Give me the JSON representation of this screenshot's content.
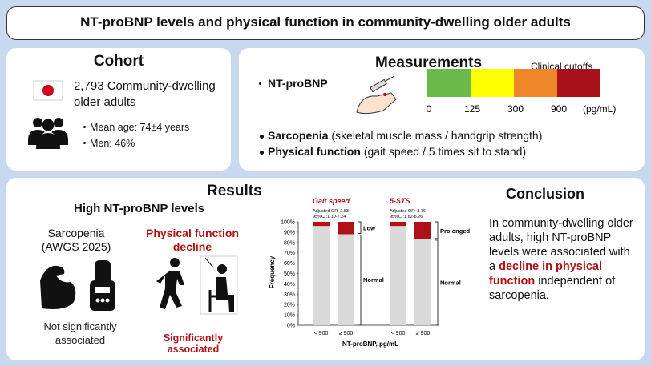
{
  "header": {
    "title": "NT-proBNP levels and physical function in community-dwelling older adults"
  },
  "cohort": {
    "title": "Cohort",
    "population": "2,793 Community-dwelling older adults",
    "details": [
      "Mean age: 74±4 years",
      "Men: 46%"
    ]
  },
  "measurements": {
    "title": "Measurements",
    "cutoff_title": "Clinical cutoffs",
    "cutoff_labels": [
      "0",
      "125",
      "300",
      "900"
    ],
    "cutoff_unit": "(pg/mL)",
    "cutoff_colors": [
      "#6bb94a",
      "#ffff00",
      "#f0862a",
      "#a8101a"
    ],
    "items": [
      {
        "label": "NT-proBNP",
        "detail": ""
      },
      {
        "label": "Sarcopenia",
        "detail": "(skeletal muscle mass / handgrip strength)"
      },
      {
        "label": "Physical function",
        "detail": "(gait speed / 5 times sit to stand)"
      }
    ]
  },
  "results": {
    "title": "Results",
    "subtitle": "High NT-proBNP levels",
    "sarcopenia": {
      "label": "Sarcopenia (AWGS 2025)",
      "finding": "Not significantly associated"
    },
    "physical": {
      "label": "Physical function decline",
      "finding": "Significantly associated"
    },
    "chart": {
      "type": "bar",
      "y_label": "Frequency",
      "x_label": "NT-proBNP, pg/mL",
      "ylim": [
        0,
        100
      ],
      "yticks": [
        {
          "value": 0,
          "label": "0%"
        },
        {
          "value": 10,
          "label": "10%"
        },
        {
          "value": 20,
          "label": "20%"
        },
        {
          "value": 30,
          "label": "30%"
        },
        {
          "value": 40,
          "label": "40%"
        },
        {
          "value": 50,
          "label": "50%"
        },
        {
          "value": 60,
          "label": "60%"
        },
        {
          "value": 70,
          "label": "70%"
        },
        {
          "value": 80,
          "label": "80%"
        },
        {
          "value": 90,
          "label": "90%"
        },
        {
          "value": 100,
          "label": "100%"
        }
      ],
      "panels": [
        {
          "title": "Gait speed",
          "or": "Adjusted OR: 2.83",
          "ci": "95%CI:1.10-7.24",
          "categories": [
            "< 900",
            "≥ 900"
          ],
          "series": [
            {
              "name": "Normal",
              "color": "#d9d9d9",
              "values": [
                96,
                88
              ]
            },
            {
              "name": "Low",
              "color": "#b01116",
              "values": [
                4,
                12
              ]
            }
          ]
        },
        {
          "title": "5-STS",
          "or": "Adjusted OR: 3.76",
          "ci": "95%CI:1.62-8.26",
          "categories": [
            "< 900",
            "≥ 900"
          ],
          "series": [
            {
              "name": "Normal",
              "color": "#d9d9d9",
              "values": [
                96,
                83
              ]
            },
            {
              "name": "Prolonged",
              "color": "#b01116",
              "values": [
                4,
                17
              ]
            }
          ]
        }
      ]
    }
  },
  "conclusion": {
    "title": "Conclusion",
    "parts": [
      "In community-dwelling older adults, high NT-proBNP levels were associated with a ",
      "decline in physical function",
      " independent of sarcopenia."
    ]
  }
}
